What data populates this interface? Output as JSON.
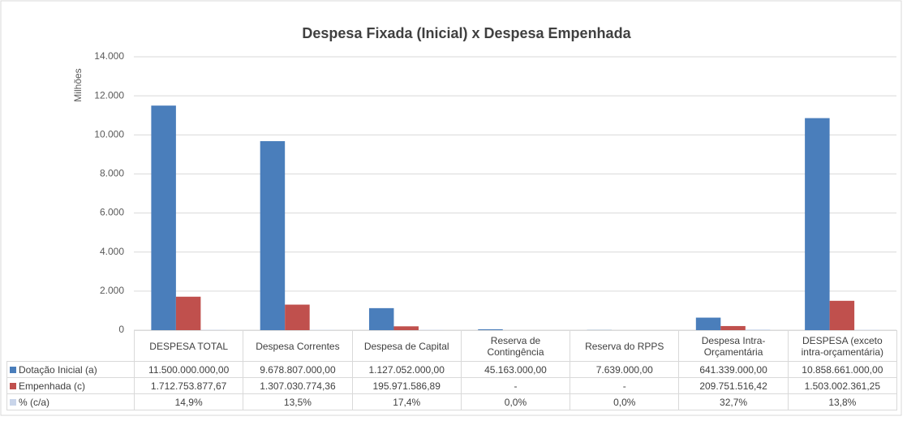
{
  "chart_data": {
    "type": "bar",
    "title": "Despesa Fixada (Inicial) x Despesa Empenhada",
    "y_axis_label": "Milhões",
    "categories": [
      "DESPESA TOTAL",
      "Despesa Correntes",
      "Despesa de Capital",
      "Reserva de Contingência",
      "Reserva do RPPS",
      "Despesa Intra-Orçamentária",
      "DESPESA (exceto intra-orçamentária)"
    ],
    "series": [
      {
        "name": "Dotação Inicial (a)",
        "color": "#4a7ebb",
        "values": [
          11500,
          9678.807,
          1127.052,
          45.163,
          7.639,
          641.339,
          10858.661
        ],
        "value_labels": [
          "11.500.000.000,00",
          "9.678.807.000,00",
          "1.127.052.000,00",
          "45.163.000,00",
          "7.639.000,00",
          "641.339.000,00",
          "10.858.661.000,00"
        ]
      },
      {
        "name": "Empenhada (c)",
        "color": "#c0504d",
        "values": [
          1712.75387767,
          1307.03077436,
          195.97158689,
          null,
          null,
          209.75151642,
          1503.00236125
        ],
        "value_labels": [
          "1.712.753.877,67",
          "1.307.030.774,36",
          "195.971.586,89",
          "-",
          "-",
          "209.751.516,42",
          "1.503.002.361,25"
        ]
      },
      {
        "name": "% (c/a)",
        "color": "#c9d5ea",
        "values": [
          14.9,
          13.5,
          17.4,
          0.0,
          0.0,
          32.7,
          13.8
        ],
        "value_labels": [
          "14,9%",
          "13,5%",
          "17,4%",
          "0,0%",
          "0,0%",
          "32,7%",
          "13,8%"
        ]
      }
    ],
    "ylim": [
      0,
      14000
    ],
    "yticks": [
      0,
      {
        "value": 2000,
        "label": "2.000"
      },
      {
        "value": 4000,
        "label": "4.000"
      },
      {
        "value": 6000,
        "label": "6.000"
      },
      {
        "value": 8000,
        "label": "8.000"
      },
      {
        "value": 10000,
        "label": "10.000"
      },
      {
        "value": 12000,
        "label": "12.000"
      },
      {
        "value": 14000,
        "label": "14.000"
      }
    ],
    "grid": true
  }
}
